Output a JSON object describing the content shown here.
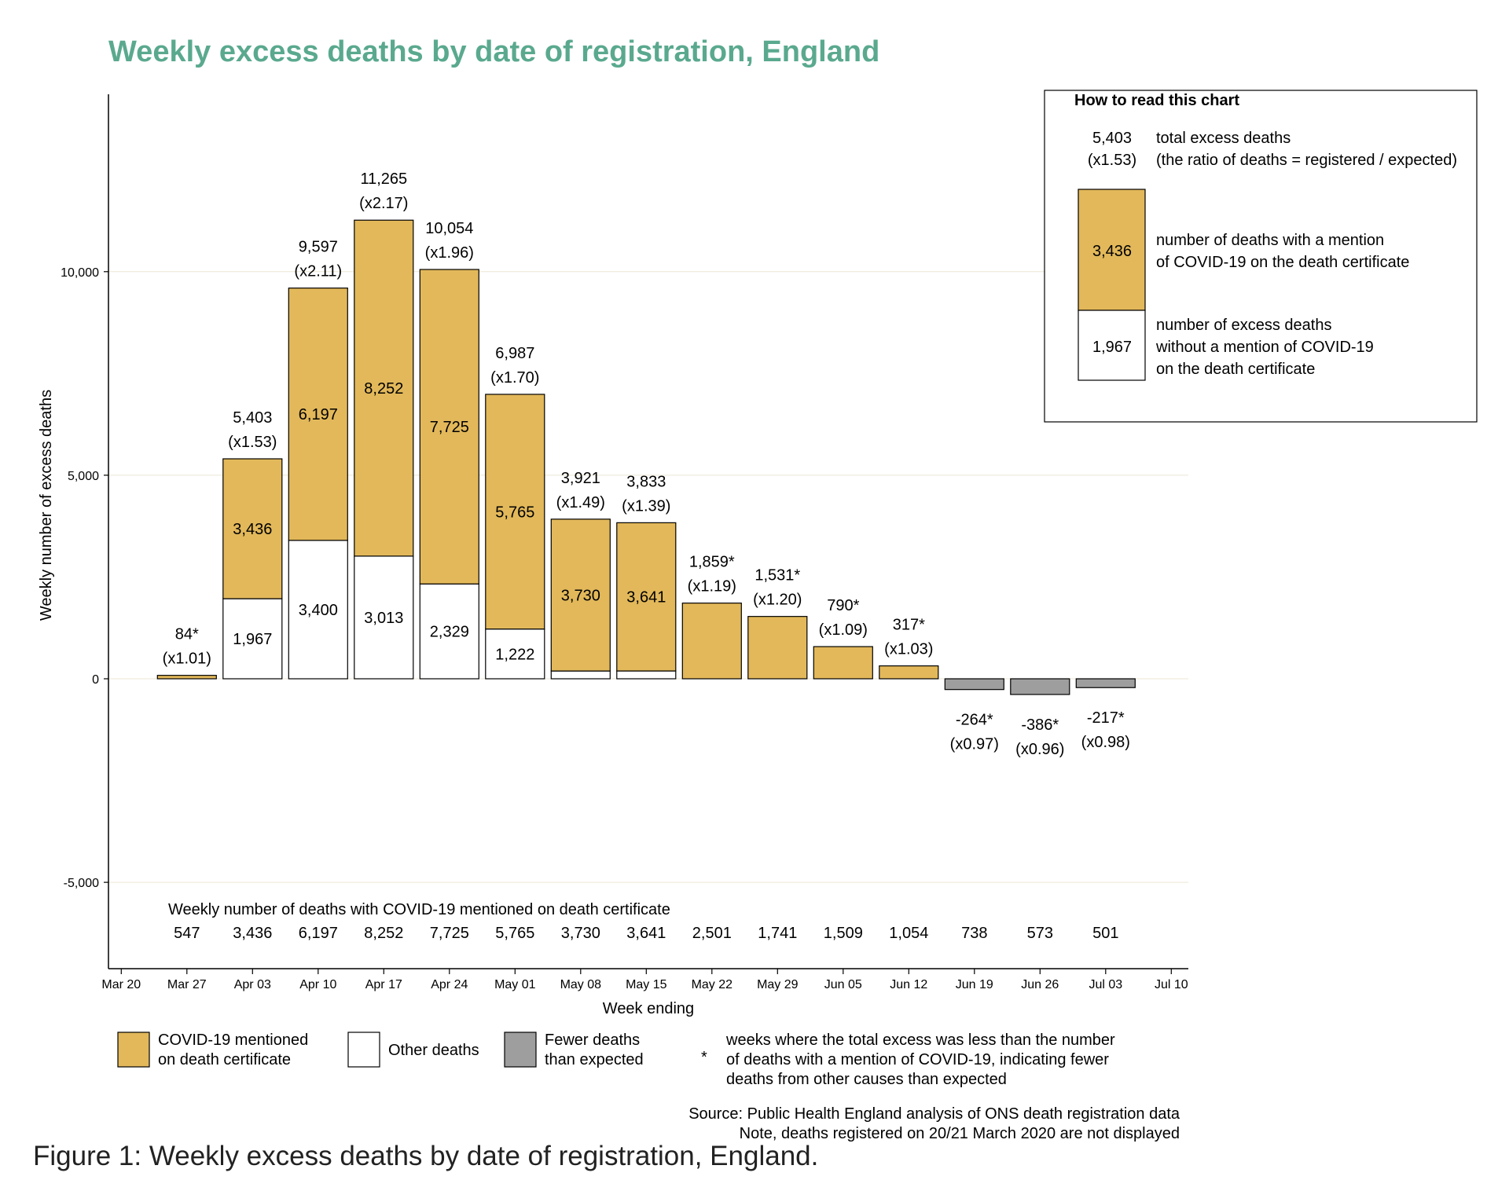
{
  "title": "Weekly excess deaths by date of registration, England",
  "colors": {
    "title": "#5aa98e",
    "covid": "#e2b85a",
    "other": "#ffffff",
    "fewer": "#9e9e9e",
    "grid": "#ede6d4"
  },
  "chart_data": {
    "type": "bar",
    "stacked": true,
    "xlabel": "Week ending",
    "ylabel": "Weekly number of excess deaths",
    "ylim": [
      -7000,
      14500
    ],
    "yticks": [
      {
        "value": 10000,
        "label": "10,000"
      },
      {
        "value": 5000,
        "label": "5,000"
      },
      {
        "value": 0,
        "label": "0"
      },
      {
        "value": -5000,
        "label": "-5,000"
      }
    ],
    "grid": true,
    "x_ticks": [
      "Mar 20",
      "Mar 27",
      "Apr 03",
      "Apr 10",
      "Apr 17",
      "Apr 24",
      "May 01",
      "May 08",
      "May 15",
      "May 22",
      "May 29",
      "Jun 05",
      "Jun 12",
      "Jun 19",
      "Jun 26",
      "Jul 03",
      "Jul 10"
    ],
    "categories": [
      "Mar 27",
      "Apr 03",
      "Apr 10",
      "Apr 17",
      "Apr 24",
      "May 01",
      "May 08",
      "May 15",
      "May 22",
      "May 29",
      "Jun 05",
      "Jun 12",
      "Jun 19",
      "Jun 26",
      "Jul 03"
    ],
    "series": [
      {
        "name": "Other deaths",
        "values": [
          0,
          1967,
          3400,
          3013,
          2329,
          1222,
          191,
          192,
          0,
          0,
          0,
          0,
          0,
          0,
          0
        ]
      },
      {
        "name": "COVID-19 mentioned on death certificate",
        "values": [
          84,
          3436,
          6197,
          8252,
          7725,
          5765,
          3730,
          3641,
          1859,
          1531,
          790,
          317,
          0,
          0,
          0
        ]
      },
      {
        "name": "Fewer deaths than expected",
        "values": [
          0,
          0,
          0,
          0,
          0,
          0,
          0,
          0,
          0,
          0,
          0,
          0,
          -264,
          -386,
          -217
        ]
      }
    ],
    "other_labels": [
      "",
      "1,967",
      "3,400",
      "3,013",
      "2,329",
      "1,222",
      "",
      "",
      "",
      "",
      "",
      "",
      "",
      "",
      ""
    ],
    "covid_labels": [
      "",
      "3,436",
      "6,197",
      "8,252",
      "7,725",
      "5,765",
      "3,730",
      "3,641",
      "",
      "",
      "",
      "",
      "",
      "",
      ""
    ],
    "totals": [
      84,
      5403,
      9597,
      11265,
      10054,
      6987,
      3921,
      3833,
      1859,
      1531,
      790,
      317,
      -264,
      -386,
      -217
    ],
    "total_labels": [
      "84*",
      "5,403",
      "9,597",
      "11,265",
      "10,054",
      "6,987",
      "3,921",
      "3,833",
      "1,859*",
      "1,531*",
      "790*",
      "317*",
      "-264*",
      "-386*",
      "-217*"
    ],
    "ratio_labels": [
      "(x1.01)",
      "(x1.53)",
      "(x2.11)",
      "(x2.17)",
      "(x1.96)",
      "(x1.70)",
      "(x1.49)",
      "(x1.39)",
      "(x1.19)",
      "(x1.20)",
      "(x1.09)",
      "(x1.03)",
      "(x0.97)",
      "(x0.96)",
      "(x0.98)"
    ],
    "covid_mentioned_title": "Weekly number of deaths with COVID-19 mentioned on death certificate",
    "covid_mentioned": [
      "547",
      "3,436",
      "6,197",
      "8,252",
      "7,725",
      "5,765",
      "3,730",
      "3,641",
      "2,501",
      "1,741",
      "1,509",
      "1,054",
      "738",
      "573",
      "501"
    ]
  },
  "how_to_read": {
    "heading": "How to read this chart",
    "total": "5,403",
    "ratio": "(x1.53)",
    "total_desc_1": "total excess deaths",
    "total_desc_2": "(the ratio of deaths = registered / expected)",
    "covid_value": "3,436",
    "covid_desc_1": "number of deaths with a mention",
    "covid_desc_2": "of COVID-19 on the death certificate",
    "other_value": "1,967",
    "other_desc_1": "number of excess deaths",
    "other_desc_2": "without a mention of COVID-19",
    "other_desc_3": "on the death certificate"
  },
  "legend": {
    "covid_1": "COVID-19 mentioned",
    "covid_2": "on death certificate",
    "other": "Other deaths",
    "fewer_1": "Fewer deaths",
    "fewer_2": "than expected",
    "star": "*",
    "star_1": "weeks where the total excess was less than the number",
    "star_2": "of deaths with a mention of COVID-19, indicating fewer",
    "star_3": "deaths from other causes than expected"
  },
  "source_1": "Source: Public Health England analysis of ONS death registration data",
  "source_2": "Note, deaths registered on 20/21 March 2020 are not displayed",
  "figure_caption": "Figure 1: Weekly excess deaths by date of registration, England."
}
